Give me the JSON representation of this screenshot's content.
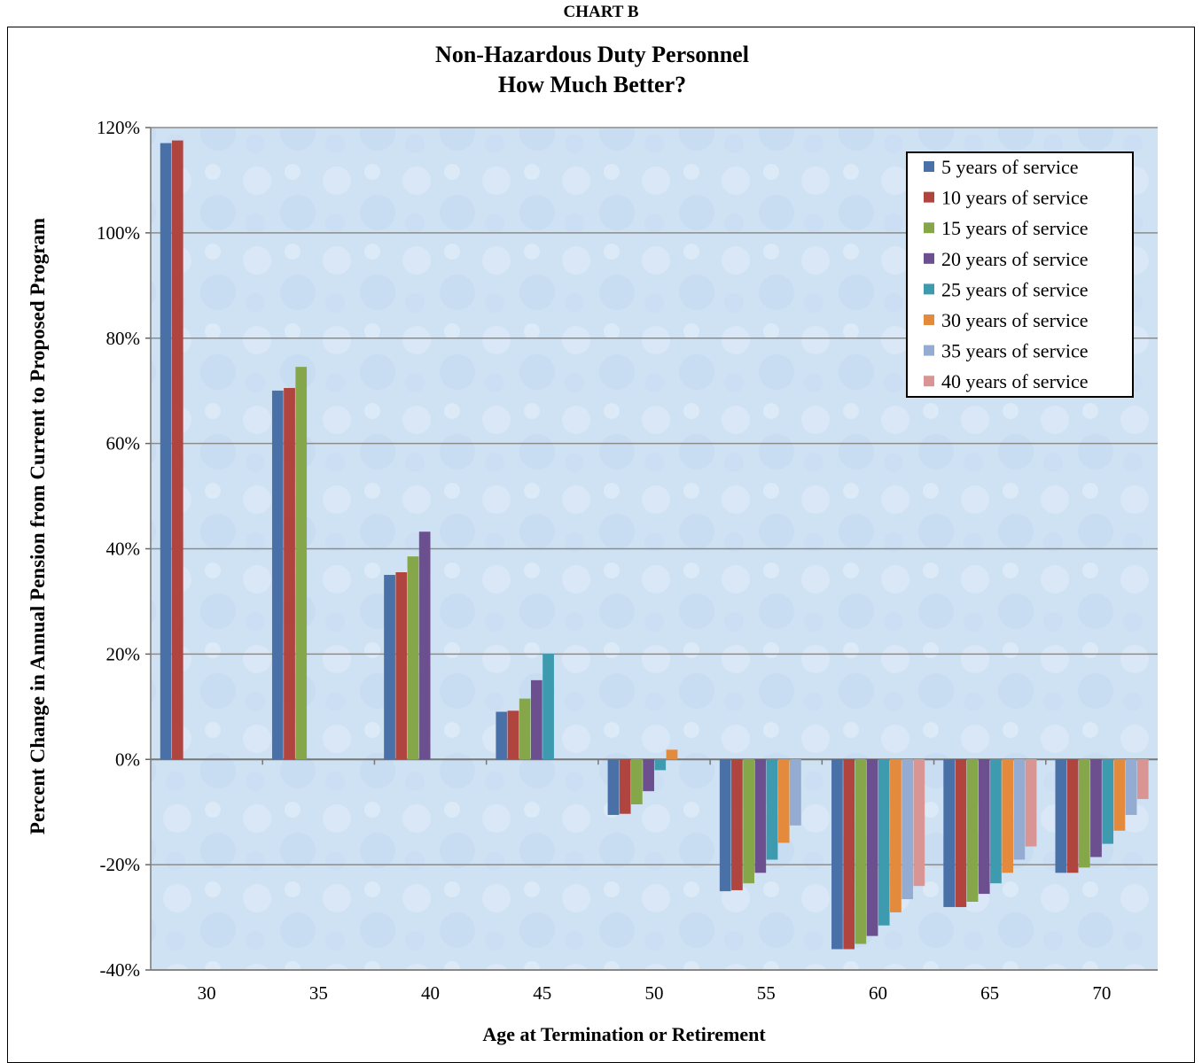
{
  "header": {
    "chart_label": "CHART B"
  },
  "colors": {
    "series": [
      "#4a70a8",
      "#b0443e",
      "#86a64a",
      "#6c4f8e",
      "#3e9aae",
      "#e48a3c",
      "#94abd2",
      "#d99594"
    ],
    "plot_bg": "#cfe2f4",
    "grid": "#8c8c8c"
  },
  "chart_data": {
    "type": "bar",
    "title": "Non-Hazardous Duty Personnel",
    "subtitle": "How Much Better?",
    "xlabel": "Age at Termination or Retirement",
    "ylabel": "Percent Change in Annual Pension from Current to Proposed Program",
    "ylim": [
      -40,
      120
    ],
    "yticks": [
      -40,
      -20,
      0,
      20,
      40,
      60,
      80,
      100,
      120
    ],
    "ytick_labels": [
      "-40%",
      "-20%",
      "0%",
      "20%",
      "40%",
      "60%",
      "80%",
      "100%",
      "120%"
    ],
    "grid": true,
    "legend_position": "top-right",
    "categories": [
      "30",
      "35",
      "40",
      "45",
      "50",
      "55",
      "60",
      "65",
      "70"
    ],
    "series": [
      {
        "name": "5 years of service",
        "values": [
          117,
          70,
          35,
          9,
          -10.5,
          -25,
          -36,
          -28,
          -21.5
        ]
      },
      {
        "name": "10 years of service",
        "values": [
          117.5,
          70.5,
          35.5,
          9.2,
          -10.3,
          -24.8,
          -36,
          -28,
          -21.5
        ]
      },
      {
        "name": "15 years of service",
        "values": [
          null,
          74.5,
          38.5,
          11.5,
          -8.5,
          -23.5,
          -35,
          -27,
          -20.5
        ]
      },
      {
        "name": "20 years of service",
        "values": [
          null,
          null,
          43.2,
          15,
          -6,
          -21.5,
          -33.5,
          -25.5,
          -18.5
        ]
      },
      {
        "name": "25 years of service",
        "values": [
          null,
          null,
          null,
          20,
          -2,
          -19,
          -31.5,
          -23.5,
          -16
        ]
      },
      {
        "name": "30 years of service",
        "values": [
          null,
          null,
          null,
          null,
          1.8,
          -15.8,
          -29,
          -21.5,
          -13.5
        ]
      },
      {
        "name": "35 years of service",
        "values": [
          null,
          null,
          null,
          null,
          null,
          -12.5,
          -26.5,
          -19,
          -10.5
        ]
      },
      {
        "name": "40 years of service",
        "values": [
          null,
          null,
          null,
          null,
          null,
          null,
          -24,
          -16.5,
          -7.5
        ]
      }
    ]
  }
}
